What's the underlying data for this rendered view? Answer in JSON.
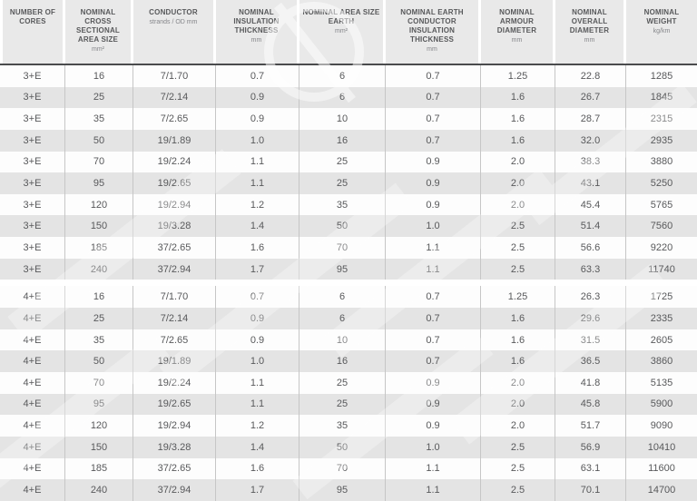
{
  "table": {
    "columns": [
      {
        "key": "cores",
        "label": "NUMBER OF CORES",
        "sub": ""
      },
      {
        "key": "cross_sectional_area",
        "label": "NOMINAL CROSS SECTIONAL AREA SIZE",
        "sub": "mm²"
      },
      {
        "key": "conductor",
        "label": "CONDUCTOR",
        "sub": "strands / OD mm"
      },
      {
        "key": "insulation_thickness",
        "label": "NOMINAL INSULATION THICKNESS",
        "sub": "mm"
      },
      {
        "key": "earth_area",
        "label": "NOMINAL AREA SIZE EARTH",
        "sub": "mm²"
      },
      {
        "key": "earth_insulation_thickness",
        "label": "NOMINAL EARTH CONDUCTOR INSULATION THICKNESS",
        "sub": "mm"
      },
      {
        "key": "armour_diameter",
        "label": "NOMINAL ARMOUR DIAMETER",
        "sub": "mm"
      },
      {
        "key": "overall_diameter",
        "label": "NOMINAL OVERALL DIAMETER",
        "sub": "mm"
      },
      {
        "key": "weight",
        "label": "NOMINAL WEIGHT",
        "sub": "kg/km"
      }
    ],
    "sections": [
      {
        "name": "3+E",
        "rows": [
          [
            "3+E",
            "16",
            "7/1.70",
            "0.7",
            "6",
            "0.7",
            "1.25",
            "22.8",
            "1285"
          ],
          [
            "3+E",
            "25",
            "7/2.14",
            "0.9",
            "6",
            "0.7",
            "1.6",
            "26.7",
            "1845"
          ],
          [
            "3+E",
            "35",
            "7/2.65",
            "0.9",
            "10",
            "0.7",
            "1.6",
            "28.7",
            "2315"
          ],
          [
            "3+E",
            "50",
            "19/1.89",
            "1.0",
            "16",
            "0.7",
            "1.6",
            "32.0",
            "2935"
          ],
          [
            "3+E",
            "70",
            "19/2.24",
            "1.1",
            "25",
            "0.9",
            "2.0",
            "38.3",
            "3880"
          ],
          [
            "3+E",
            "95",
            "19/2.65",
            "1.1",
            "25",
            "0.9",
            "2.0",
            "43.1",
            "5250"
          ],
          [
            "3+E",
            "120",
            "19/2.94",
            "1.2",
            "35",
            "0.9",
            "2.0",
            "45.4",
            "5765"
          ],
          [
            "3+E",
            "150",
            "19/3.28",
            "1.4",
            "50",
            "1.0",
            "2.5",
            "51.4",
            "7560"
          ],
          [
            "3+E",
            "185",
            "37/2.65",
            "1.6",
            "70",
            "1.1",
            "2.5",
            "56.6",
            "9220"
          ],
          [
            "3+E",
            "240",
            "37/2.94",
            "1.7",
            "95",
            "1.1",
            "2.5",
            "63.3",
            "11740"
          ]
        ]
      },
      {
        "name": "4+E",
        "rows": [
          [
            "4+E",
            "16",
            "7/1.70",
            "0.7",
            "6",
            "0.7",
            "1.25",
            "26.3",
            "1725"
          ],
          [
            "4+E",
            "25",
            "7/2.14",
            "0.9",
            "6",
            "0.7",
            "1.6",
            "29.6",
            "2335"
          ],
          [
            "4+E",
            "35",
            "7/2.65",
            "0.9",
            "10",
            "0.7",
            "1.6",
            "31.5",
            "2605"
          ],
          [
            "4+E",
            "50",
            "19/1.89",
            "1.0",
            "16",
            "0.7",
            "1.6",
            "36.5",
            "3860"
          ],
          [
            "4+E",
            "70",
            "19/2.24",
            "1.1",
            "25",
            "0.9",
            "2.0",
            "41.8",
            "5135"
          ],
          [
            "4+E",
            "95",
            "19/2.65",
            "1.1",
            "25",
            "0.9",
            "2.0",
            "45.8",
            "5900"
          ],
          [
            "4+E",
            "120",
            "19/2.94",
            "1.2",
            "35",
            "0.9",
            "2.0",
            "51.7",
            "9090"
          ],
          [
            "4+E",
            "150",
            "19/3.28",
            "1.4",
            "50",
            "1.0",
            "2.5",
            "56.9",
            "10410"
          ],
          [
            "4+E",
            "185",
            "37/2.65",
            "1.6",
            "70",
            "1.1",
            "2.5",
            "63.1",
            "11600"
          ],
          [
            "4+E",
            "240",
            "37/2.94",
            "1.7",
            "95",
            "1.1",
            "2.5",
            "70.1",
            "14700"
          ]
        ]
      }
    ],
    "colors": {
      "header_bg": "#e9e9e9",
      "header_rule": "#4a4b4d",
      "row_bg": "#fdfdfd",
      "row_alt_bg": "#e4e4e4",
      "grid_line": "#c6c6c6",
      "text": "#58595b",
      "watermark": "#ffffff"
    }
  }
}
